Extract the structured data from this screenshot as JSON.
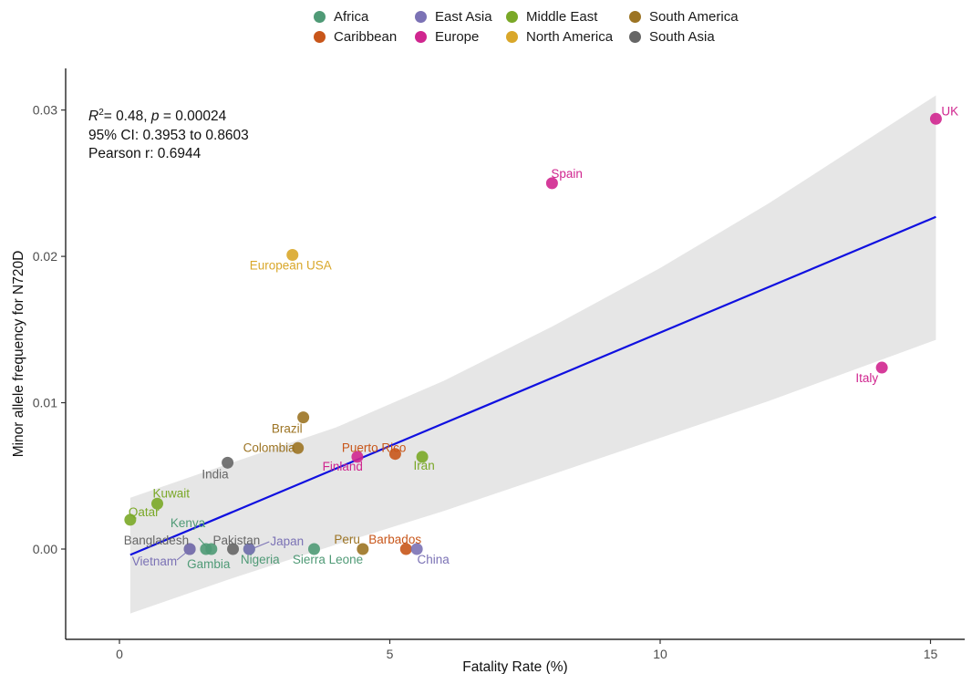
{
  "legend": {
    "items": [
      {
        "label": "Africa",
        "color": "#4f9a76"
      },
      {
        "label": "Caribbean",
        "color": "#c8561a"
      },
      {
        "label": "East Asia",
        "color": "#7b72b5"
      },
      {
        "label": "Europe",
        "color": "#d0268f"
      },
      {
        "label": "Middle East",
        "color": "#7aa827"
      },
      {
        "label": "North America",
        "color": "#d9a72a"
      },
      {
        "label": "South America",
        "color": "#9c7424"
      },
      {
        "label": "South Asia",
        "color": "#666666"
      }
    ]
  },
  "stats": {
    "r2_symbol": "R",
    "r2_sup": "2",
    "r2_rest": "= 0.48, ",
    "p_symbol": "p",
    "p_rest": " = 0.00024",
    "ci": "95% CI: 0.3953 to 0.8603",
    "pearson": "Pearson r: 0.6944"
  },
  "chart_data": {
    "type": "scatter",
    "xlabel": "Fatality Rate (%)",
    "ylabel": "Minor allele frequency for N720D",
    "xlim": [
      -1,
      16
    ],
    "ylim": [
      -0.006,
      0.033
    ],
    "xticks": [
      0,
      5,
      10,
      15
    ],
    "yticks": [
      0.0,
      0.01,
      0.02,
      0.03
    ],
    "xtick_labels": [
      "0",
      "5",
      "10",
      "15"
    ],
    "ytick_labels": [
      "0.00",
      "0.01",
      "0.02",
      "0.03"
    ],
    "grid": false,
    "legend_position": "top",
    "regression_line": {
      "x": [
        0.2,
        15.1
      ],
      "y": [
        -0.0004,
        0.0227
      ],
      "color": "#1010e0"
    },
    "confidence_band": {
      "color": "#e6e6e6",
      "upper": [
        [
          0.2,
          0.0035
        ],
        [
          2,
          0.0058
        ],
        [
          4,
          0.0083
        ],
        [
          6,
          0.0115
        ],
        [
          8,
          0.0152
        ],
        [
          10,
          0.0192
        ],
        [
          12,
          0.0236
        ],
        [
          15.1,
          0.031
        ]
      ],
      "lower": [
        [
          0.2,
          -0.0044
        ],
        [
          2,
          -0.0021
        ],
        [
          4,
          0.0003
        ],
        [
          6,
          0.0026
        ],
        [
          8,
          0.0051
        ],
        [
          10,
          0.0076
        ],
        [
          12,
          0.0101
        ],
        [
          15.1,
          0.0143
        ]
      ]
    },
    "points": [
      {
        "label": "UK",
        "x": 15.1,
        "y": 0.0294,
        "region": "Europe",
        "color": "#d0268f"
      },
      {
        "label": "Spain",
        "x": 8.0,
        "y": 0.025,
        "region": "Europe",
        "color": "#d0268f"
      },
      {
        "label": "Italy",
        "x": 14.1,
        "y": 0.0124,
        "region": "Europe",
        "color": "#d0268f"
      },
      {
        "label": "Finland",
        "x": 4.4,
        "y": 0.0063,
        "region": "Europe",
        "color": "#d0268f"
      },
      {
        "label": "European USA",
        "x": 3.2,
        "y": 0.0201,
        "region": "North America",
        "color": "#d9a72a"
      },
      {
        "label": "Brazil",
        "x": 3.4,
        "y": 0.009,
        "region": "South America",
        "color": "#9c7424"
      },
      {
        "label": "Colombia",
        "x": 3.3,
        "y": 0.0069,
        "region": "South America",
        "color": "#9c7424"
      },
      {
        "label": "Peru",
        "x": 4.5,
        "y": 0.0,
        "region": "South America",
        "color": "#9c7424"
      },
      {
        "label": "Puerto Rico",
        "x": 5.1,
        "y": 0.0065,
        "region": "Caribbean",
        "color": "#c8561a"
      },
      {
        "label": "Barbados",
        "x": 5.3,
        "y": 0.0,
        "region": "Caribbean",
        "color": "#c8561a"
      },
      {
        "label": "Iran",
        "x": 5.6,
        "y": 0.0063,
        "region": "Middle East",
        "color": "#7aa827"
      },
      {
        "label": "Kuwait",
        "x": 0.7,
        "y": 0.0031,
        "region": "Middle East",
        "color": "#7aa827"
      },
      {
        "label": "Qatar",
        "x": 0.2,
        "y": 0.002,
        "region": "Middle East",
        "color": "#7aa827"
      },
      {
        "label": "India",
        "x": 2.0,
        "y": 0.0059,
        "region": "South Asia",
        "color": "#666666"
      },
      {
        "label": "Bangladesh",
        "x": 1.3,
        "y": 0.0,
        "region": "South Asia",
        "color": "#666666"
      },
      {
        "label": "Pakistan",
        "x": 2.1,
        "y": 0.0,
        "region": "South Asia",
        "color": "#666666"
      },
      {
        "label": "Kenya",
        "x": 1.6,
        "y": 0.0,
        "region": "Africa",
        "color": "#4f9a76"
      },
      {
        "label": "Gambia",
        "x": 1.7,
        "y": 0.0,
        "region": "Africa",
        "color": "#4f9a76"
      },
      {
        "label": "Nigeria",
        "x": 2.4,
        "y": 0.0,
        "region": "Africa",
        "color": "#4f9a76"
      },
      {
        "label": "Sierra Leone",
        "x": 3.6,
        "y": 0.0,
        "region": "Africa",
        "color": "#4f9a76"
      },
      {
        "label": "Japan",
        "x": 2.4,
        "y": 0.0,
        "region": "East Asia",
        "color": "#7b72b5"
      },
      {
        "label": "China",
        "x": 5.5,
        "y": 0.0,
        "region": "East Asia",
        "color": "#7b72b5"
      },
      {
        "label": "Vietnam",
        "x": 1.3,
        "y": 0.0,
        "region": "East Asia",
        "color": "#7b72b5"
      }
    ]
  }
}
